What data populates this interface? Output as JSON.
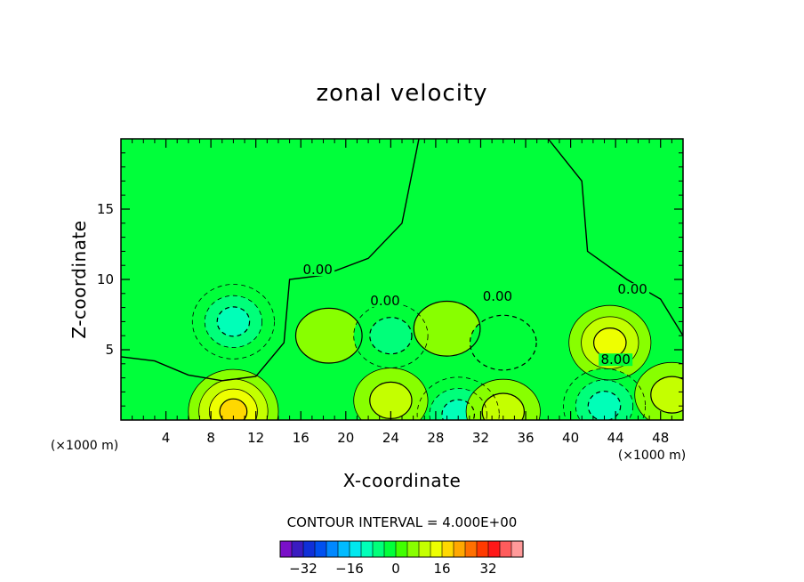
{
  "chart_data": {
    "type": "heatmap",
    "title": "zonal velocity",
    "xlabel": "X-coordinate",
    "ylabel": "Z-coordinate",
    "x_unit": "(×1000 m)",
    "y_unit": "(×1000 m)",
    "xlim": [
      0,
      50
    ],
    "ylim": [
      0,
      20
    ],
    "x_ticks": [
      4,
      8,
      12,
      16,
      20,
      24,
      28,
      32,
      36,
      40,
      44,
      48
    ],
    "y_ticks": [
      5,
      10,
      15
    ],
    "contour_interval_text": "CONTOUR INTERVAL = 4.000E+00",
    "contour_labels": [
      {
        "text": "0.00",
        "x": 17.5,
        "z": 10.5
      },
      {
        "text": "0.00",
        "x": 23.5,
        "z": 8.3
      },
      {
        "text": "0.00",
        "x": 33.5,
        "z": 8.6
      },
      {
        "text": "0.00",
        "x": 45.5,
        "z": 9.1
      },
      {
        "text": "8.00",
        "x": 44.0,
        "z": 4.1
      }
    ],
    "features": [
      {
        "kind": "min",
        "x": 10.0,
        "z": 7.0,
        "value": -12
      },
      {
        "kind": "max",
        "x": 10.0,
        "z": 0.6,
        "value": 16
      },
      {
        "kind": "max",
        "x": 18.5,
        "z": 6.0,
        "value": 4
      },
      {
        "kind": "min",
        "x": 24.0,
        "z": 6.0,
        "value": -8
      },
      {
        "kind": "max",
        "x": 29.0,
        "z": 6.5,
        "value": 4
      },
      {
        "kind": "min",
        "x": 34.0,
        "z": 5.5,
        "value": -4
      },
      {
        "kind": "max",
        "x": 43.5,
        "z": 5.5,
        "value": 12
      },
      {
        "kind": "min",
        "x": 30.0,
        "z": 0.4,
        "value": -12
      },
      {
        "kind": "min",
        "x": 43.0,
        "z": 1.0,
        "value": -12
      },
      {
        "kind": "max",
        "x": 24.0,
        "z": 1.4,
        "value": 8
      },
      {
        "kind": "max",
        "x": 34.0,
        "z": 0.6,
        "value": 8
      },
      {
        "kind": "max",
        "x": 49.0,
        "z": 1.8,
        "value": 8
      }
    ],
    "colorbar": {
      "colors": [
        "#7a10c8",
        "#3a1cc0",
        "#1030d8",
        "#0050f0",
        "#0088ff",
        "#00bbff",
        "#00e8ee",
        "#00ffb8",
        "#00ff7a",
        "#00ff3a",
        "#40ff00",
        "#88ff00",
        "#c4ff00",
        "#eeff00",
        "#ffd800",
        "#ffa800",
        "#ff7000",
        "#ff3a00",
        "#ff1818",
        "#ff5c5c",
        "#ff9a9a"
      ],
      "tick_labels": [
        "-32",
        "-16",
        "0",
        "16",
        "32"
      ]
    },
    "background_color": "#00ff3a"
  }
}
